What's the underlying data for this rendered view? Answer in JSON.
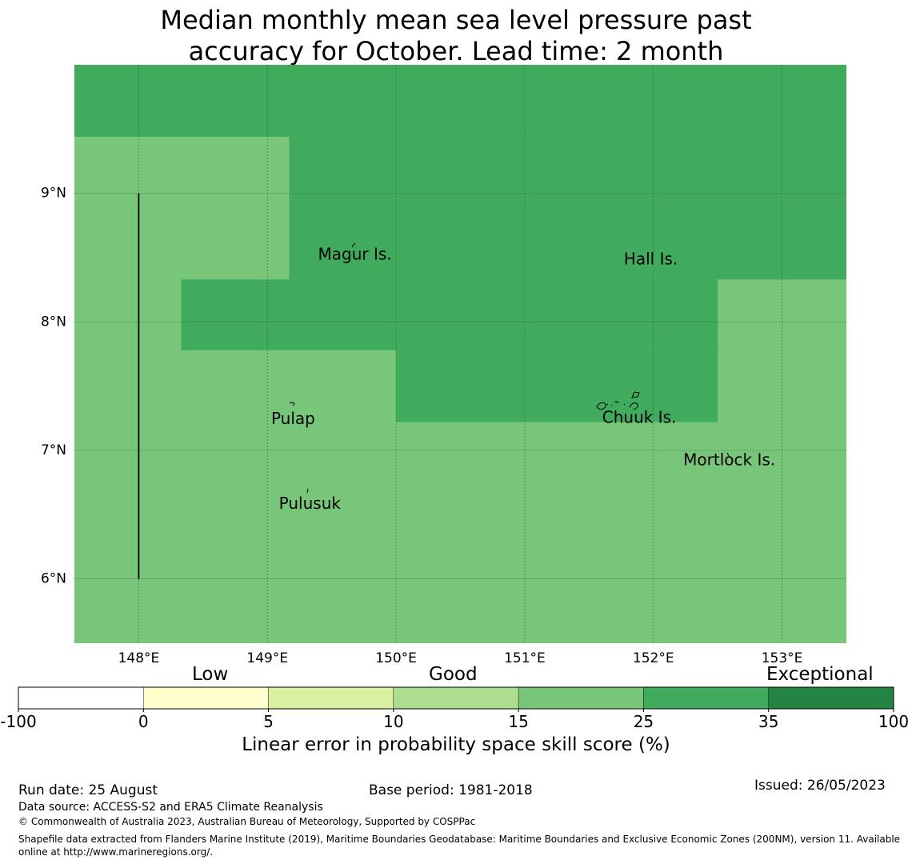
{
  "title": {
    "line1": "Median monthly mean sea level pressure past",
    "line2": "accuracy for October. Lead time: 2 month"
  },
  "map": {
    "lon_range": [
      147.5,
      153.5
    ],
    "lat_range": [
      5.5,
      10.0
    ],
    "x_ticks": [
      {
        "value": 148,
        "label": "148°E"
      },
      {
        "value": 149,
        "label": "149°E"
      },
      {
        "value": 150,
        "label": "150°E"
      },
      {
        "value": 151,
        "label": "151°E"
      },
      {
        "value": 152,
        "label": "152°E"
      },
      {
        "value": 153,
        "label": "153°E"
      }
    ],
    "y_ticks": [
      {
        "value": 9,
        "label": "9°N"
      },
      {
        "value": 8,
        "label": "8°N"
      },
      {
        "value": 7,
        "label": "7°N"
      },
      {
        "value": 6,
        "label": "6°N"
      }
    ],
    "base_color": "#78c679",
    "skill_regions": [
      {
        "lon": [
          147.5,
          153.5
        ],
        "lat": [
          9.44,
          10.0
        ],
        "color": "#41ab5d"
      },
      {
        "lon": [
          149.17,
          153.5
        ],
        "lat": [
          8.33,
          9.44
        ],
        "color": "#41ab5d"
      },
      {
        "lon": [
          148.33,
          152.5
        ],
        "lat": [
          7.78,
          8.33
        ],
        "color": "#41ab5d"
      },
      {
        "lon": [
          150.0,
          152.5
        ],
        "lat": [
          7.22,
          7.78
        ],
        "color": "#41ab5d"
      }
    ],
    "boundary_line": {
      "lon": 148.0,
      "lat": [
        6.0,
        9.0
      ]
    },
    "places": [
      {
        "name": "Magur Is.",
        "lon": 149.68,
        "lat": 8.52
      },
      {
        "name": "Hall Is.",
        "lon": 151.98,
        "lat": 8.48
      },
      {
        "name": "Pulap",
        "lon": 149.2,
        "lat": 7.24
      },
      {
        "name": "Chuuk Is.",
        "lon": 151.89,
        "lat": 7.25
      },
      {
        "name": "Mortlock Is.",
        "lon": 152.59,
        "lat": 6.92
      },
      {
        "name": "Pulusuk",
        "lon": 149.33,
        "lat": 6.58
      }
    ]
  },
  "colorbar": {
    "bins": [
      {
        "from": "-100",
        "to": "0",
        "color": "#ffffff"
      },
      {
        "from": "0",
        "to": "5",
        "color": "#ffffcc"
      },
      {
        "from": "5",
        "to": "10",
        "color": "#d9f0a3"
      },
      {
        "from": "10",
        "to": "15",
        "color": "#addd8e"
      },
      {
        "from": "15",
        "to": "25",
        "color": "#78c679"
      },
      {
        "from": "25",
        "to": "35",
        "color": "#41ab5d"
      },
      {
        "from": "35",
        "to": "100",
        "color": "#238443"
      }
    ],
    "ticks": [
      "-100",
      "0",
      "5",
      "10",
      "15",
      "25",
      "35",
      "100"
    ],
    "categories": {
      "low": "Low",
      "good": "Good",
      "exceptional": "Exceptional"
    },
    "title": "Linear error in probability space skill score (%)"
  },
  "footer": {
    "run_date": "Run date: 25 August",
    "base_period": "Base period: 1981-2018",
    "issued": "Issued: 26/05/2023",
    "data_source": "Data source: ACCESS-S2 and ERA5 Climate Reanalysis",
    "copyright": "© Commonwealth of Australia 2023, Australian Bureau of Meteorology, Supported by COSPPac",
    "shapefile": "Shapefile data extracted from Flanders Marine Institute (2019), Maritime Boundaries Geodatabase: Maritime Boundaries and Exclusive Economic Zones (200NM), version 11. Available online at http://www.marineregions.org/."
  }
}
